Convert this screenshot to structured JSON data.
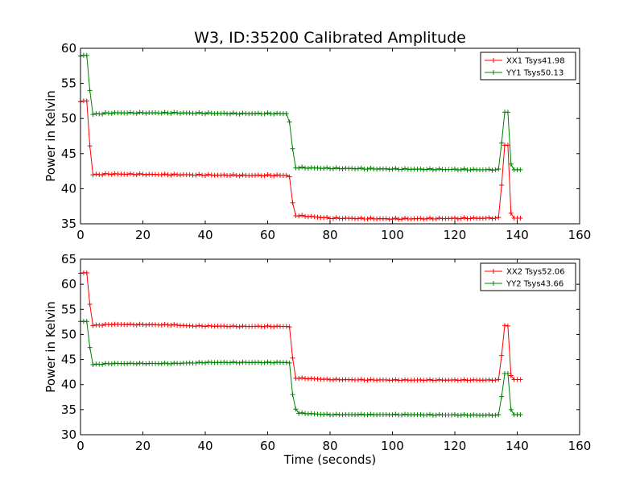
{
  "figure_title": "W3, ID:35200 Calibrated Amplitude",
  "chart_data": [
    {
      "type": "line",
      "ylabel": "Power in Kelvin",
      "xlabel": "",
      "xlim": [
        0,
        160
      ],
      "ylim": [
        35,
        60
      ],
      "xticks": [
        0,
        20,
        40,
        60,
        80,
        100,
        120,
        140,
        160
      ],
      "yticks": [
        35,
        40,
        45,
        50,
        55,
        60
      ],
      "xtick_labels": [
        "0",
        "20",
        "40",
        "60",
        "80",
        "100",
        "120",
        "140",
        "160"
      ],
      "ytick_labels": [
        "35",
        "40",
        "45",
        "50",
        "55",
        "60"
      ],
      "grid": false,
      "legend": "top-right",
      "series": [
        {
          "name": "XX1 Tsys41.98",
          "color": "#ff0000",
          "points": [
            [
              0,
              52.4
            ],
            [
              1,
              52.5
            ],
            [
              2,
              52.5
            ],
            [
              3,
              46.1
            ],
            [
              4,
              42.0
            ],
            [
              10,
              42.1
            ],
            [
              30,
              42.0
            ],
            [
              50,
              41.9
            ],
            [
              66,
              41.9
            ],
            [
              67,
              41.7
            ],
            [
              68,
              38.0
            ],
            [
              69,
              36.2
            ],
            [
              80,
              35.8
            ],
            [
              100,
              35.7
            ],
            [
              130,
              35.8
            ],
            [
              133,
              35.8
            ],
            [
              134,
              35.9
            ],
            [
              135,
              40.5
            ],
            [
              136,
              46.2
            ],
            [
              137,
              46.2
            ],
            [
              138,
              36.5
            ],
            [
              139,
              35.8
            ],
            [
              140,
              35.8
            ],
            [
              141,
              35.8
            ]
          ]
        },
        {
          "name": "YY1 Tsys50.13",
          "color": "#008000",
          "points": [
            [
              0,
              58.9
            ],
            [
              1,
              59.0
            ],
            [
              2,
              59.0
            ],
            [
              3,
              54.0
            ],
            [
              4,
              50.6
            ],
            [
              10,
              50.8
            ],
            [
              30,
              50.8
            ],
            [
              50,
              50.7
            ],
            [
              66,
              50.7
            ],
            [
              67,
              49.5
            ],
            [
              68,
              45.7
            ],
            [
              69,
              43.0
            ],
            [
              80,
              42.9
            ],
            [
              100,
              42.8
            ],
            [
              130,
              42.7
            ],
            [
              133,
              42.7
            ],
            [
              134,
              42.8
            ],
            [
              135,
              46.5
            ],
            [
              136,
              50.9
            ],
            [
              137,
              50.9
            ],
            [
              138,
              43.5
            ],
            [
              139,
              42.7
            ],
            [
              140,
              42.7
            ],
            [
              141,
              42.7
            ]
          ]
        }
      ]
    },
    {
      "type": "line",
      "ylabel": "Power in Kelvin",
      "xlabel": "Time (seconds)",
      "xlim": [
        0,
        160
      ],
      "ylim": [
        30,
        65
      ],
      "xticks": [
        0,
        20,
        40,
        60,
        80,
        100,
        120,
        140,
        160
      ],
      "yticks": [
        30,
        35,
        40,
        45,
        50,
        55,
        60,
        65
      ],
      "xtick_labels": [
        "0",
        "20",
        "40",
        "60",
        "80",
        "100",
        "120",
        "140",
        "160"
      ],
      "ytick_labels": [
        "30",
        "35",
        "40",
        "45",
        "50",
        "55",
        "60",
        "65"
      ],
      "grid": false,
      "legend": "top-right",
      "series": [
        {
          "name": "XX2 Tsys52.06",
          "color": "#ff0000",
          "points": [
            [
              0,
              62.2
            ],
            [
              1,
              62.3
            ],
            [
              2,
              62.3
            ],
            [
              3,
              56.0
            ],
            [
              4,
              51.8
            ],
            [
              10,
              52.0
            ],
            [
              30,
              51.9
            ],
            [
              35,
              51.7
            ],
            [
              50,
              51.6
            ],
            [
              66,
              51.6
            ],
            [
              67,
              51.5
            ],
            [
              68,
              45.3
            ],
            [
              69,
              41.3
            ],
            [
              80,
              41.0
            ],
            [
              100,
              40.9
            ],
            [
              130,
              40.9
            ],
            [
              133,
              40.9
            ],
            [
              134,
              41.0
            ],
            [
              135,
              45.8
            ],
            [
              136,
              51.8
            ],
            [
              137,
              51.7
            ],
            [
              138,
              41.8
            ],
            [
              139,
              41.0
            ],
            [
              140,
              41.0
            ],
            [
              141,
              41.0
            ]
          ]
        },
        {
          "name": "YY2 Tsys43.66",
          "color": "#008000",
          "points": [
            [
              0,
              52.6
            ],
            [
              1,
              52.6
            ],
            [
              2,
              52.6
            ],
            [
              3,
              47.4
            ],
            [
              4,
              44.0
            ],
            [
              10,
              44.2
            ],
            [
              30,
              44.2
            ],
            [
              40,
              44.4
            ],
            [
              50,
              44.4
            ],
            [
              66,
              44.4
            ],
            [
              67,
              44.3
            ],
            [
              68,
              38.0
            ],
            [
              69,
              35.1
            ],
            [
              70,
              34.3
            ],
            [
              80,
              34.0
            ],
            [
              100,
              34.0
            ],
            [
              130,
              33.9
            ],
            [
              133,
              33.9
            ],
            [
              134,
              34.0
            ],
            [
              135,
              37.6
            ],
            [
              136,
              42.2
            ],
            [
              137,
              42.2
            ],
            [
              138,
              35.0
            ],
            [
              139,
              34.0
            ],
            [
              140,
              34.0
            ],
            [
              141,
              34.0
            ]
          ]
        }
      ]
    }
  ]
}
